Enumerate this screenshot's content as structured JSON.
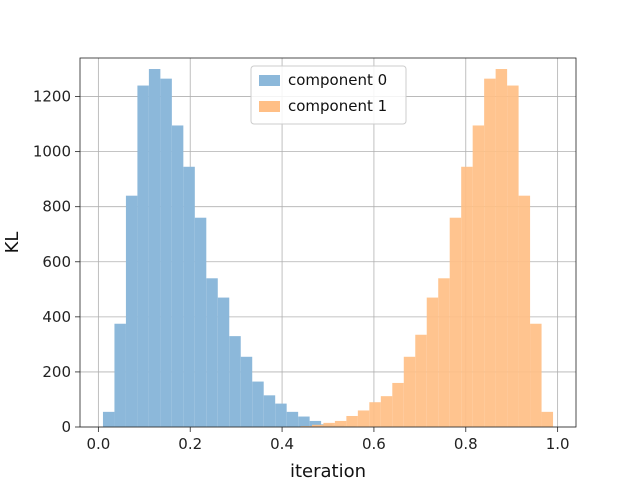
{
  "chart_data": {
    "type": "bar",
    "subtype": "overlapping-histogram",
    "title": "",
    "xlabel": "iteration",
    "ylabel": "KL",
    "xlim": [
      -0.04,
      1.04
    ],
    "ylim": [
      0,
      1340
    ],
    "xticks": [
      0.0,
      0.2,
      0.4,
      0.6,
      0.8,
      1.0
    ],
    "xtick_labels": [
      "0.0",
      "0.2",
      "0.4",
      "0.6",
      "0.8",
      "1.0"
    ],
    "yticks": [
      0,
      200,
      400,
      600,
      800,
      1000,
      1200
    ],
    "ytick_labels": [
      "0",
      "200",
      "400",
      "600",
      "800",
      "1000",
      "1200"
    ],
    "grid": true,
    "legend_position": "top-center",
    "bin_width": 0.025,
    "series": [
      {
        "name": "component 0",
        "color": "#8cb8da",
        "bins": [
          {
            "x0": 0.01,
            "x1": 0.035,
            "count": 55
          },
          {
            "x0": 0.035,
            "x1": 0.06,
            "count": 375
          },
          {
            "x0": 0.06,
            "x1": 0.085,
            "count": 840
          },
          {
            "x0": 0.085,
            "x1": 0.11,
            "count": 1240
          },
          {
            "x0": 0.11,
            "x1": 0.135,
            "count": 1300
          },
          {
            "x0": 0.135,
            "x1": 0.16,
            "count": 1265
          },
          {
            "x0": 0.16,
            "x1": 0.185,
            "count": 1095
          },
          {
            "x0": 0.185,
            "x1": 0.21,
            "count": 945
          },
          {
            "x0": 0.21,
            "x1": 0.235,
            "count": 760
          },
          {
            "x0": 0.235,
            "x1": 0.26,
            "count": 540
          },
          {
            "x0": 0.26,
            "x1": 0.285,
            "count": 470
          },
          {
            "x0": 0.285,
            "x1": 0.31,
            "count": 330
          },
          {
            "x0": 0.31,
            "x1": 0.335,
            "count": 255
          },
          {
            "x0": 0.335,
            "x1": 0.36,
            "count": 165
          },
          {
            "x0": 0.36,
            "x1": 0.385,
            "count": 115
          },
          {
            "x0": 0.385,
            "x1": 0.41,
            "count": 85
          },
          {
            "x0": 0.41,
            "x1": 0.435,
            "count": 55
          },
          {
            "x0": 0.435,
            "x1": 0.46,
            "count": 38
          },
          {
            "x0": 0.46,
            "x1": 0.485,
            "count": 22
          },
          {
            "x0": 0.485,
            "x1": 0.51,
            "count": 10
          },
          {
            "x0": 0.51,
            "x1": 0.535,
            "count": 6
          },
          {
            "x0": 0.535,
            "x1": 0.56,
            "count": 3
          }
        ]
      },
      {
        "name": "component 1",
        "color": "#ffbf86",
        "bins": [
          {
            "x0": 0.44,
            "x1": 0.465,
            "count": 3
          },
          {
            "x0": 0.465,
            "x1": 0.49,
            "count": 8
          },
          {
            "x0": 0.49,
            "x1": 0.515,
            "count": 15
          },
          {
            "x0": 0.515,
            "x1": 0.54,
            "count": 22
          },
          {
            "x0": 0.54,
            "x1": 0.565,
            "count": 40
          },
          {
            "x0": 0.565,
            "x1": 0.59,
            "count": 60
          },
          {
            "x0": 0.59,
            "x1": 0.615,
            "count": 90
          },
          {
            "x0": 0.615,
            "x1": 0.64,
            "count": 112
          },
          {
            "x0": 0.64,
            "x1": 0.665,
            "count": 160
          },
          {
            "x0": 0.665,
            "x1": 0.69,
            "count": 255
          },
          {
            "x0": 0.69,
            "x1": 0.715,
            "count": 335
          },
          {
            "x0": 0.715,
            "x1": 0.74,
            "count": 470
          },
          {
            "x0": 0.74,
            "x1": 0.765,
            "count": 540
          },
          {
            "x0": 0.765,
            "x1": 0.79,
            "count": 760
          },
          {
            "x0": 0.79,
            "x1": 0.815,
            "count": 945
          },
          {
            "x0": 0.815,
            "x1": 0.84,
            "count": 1095
          },
          {
            "x0": 0.84,
            "x1": 0.865,
            "count": 1265
          },
          {
            "x0": 0.865,
            "x1": 0.89,
            "count": 1300
          },
          {
            "x0": 0.89,
            "x1": 0.915,
            "count": 1240
          },
          {
            "x0": 0.915,
            "x1": 0.94,
            "count": 840
          },
          {
            "x0": 0.94,
            "x1": 0.965,
            "count": 375
          },
          {
            "x0": 0.965,
            "x1": 0.99,
            "count": 55
          }
        ]
      }
    ]
  }
}
